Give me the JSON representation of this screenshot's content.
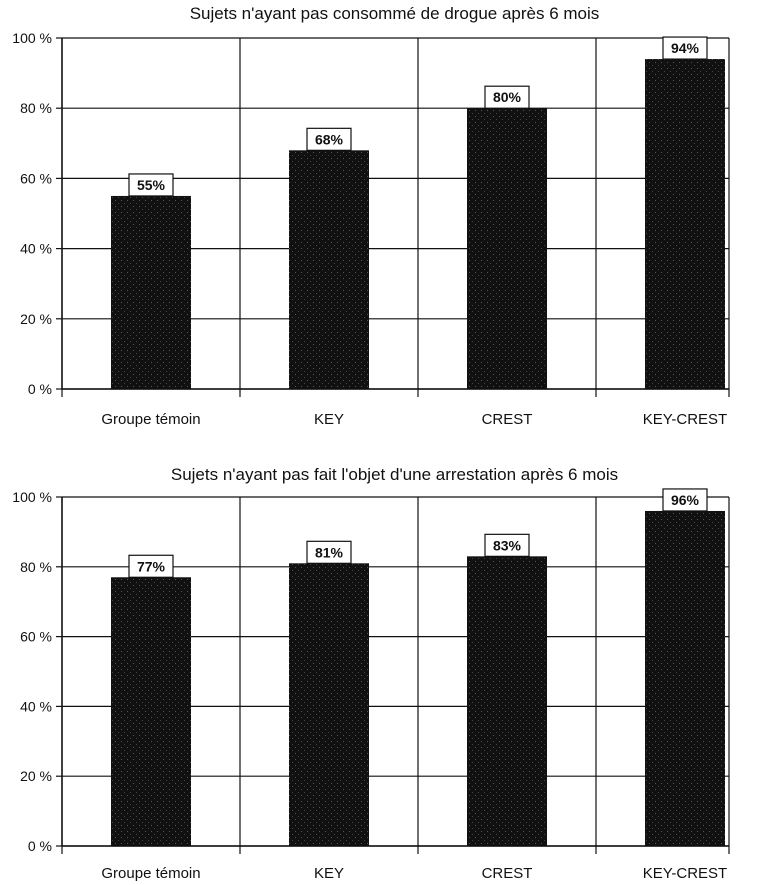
{
  "chart_data": [
    {
      "type": "bar",
      "title": "Sujets n'ayant pas consommé de drogue après 6 mois",
      "categories": [
        "Groupe témoin",
        "KEY",
        "CREST",
        "KEY-CREST"
      ],
      "values": [
        55,
        68,
        80,
        94
      ],
      "value_labels": [
        "55%",
        "68%",
        "80%",
        "94%"
      ],
      "yticks": [
        0,
        20,
        40,
        60,
        80,
        100
      ],
      "ytick_labels": [
        "0 %",
        "20 %",
        "40 %",
        "60 %",
        "80 %",
        "100 %"
      ],
      "ylim": [
        0,
        100
      ],
      "grid": "vertical and horizontal",
      "bar_color": "#111111"
    },
    {
      "type": "bar",
      "title": "Sujets n'ayant pas fait l'objet d'une arrestation après 6 mois",
      "categories": [
        "Groupe témoin",
        "KEY",
        "CREST",
        "KEY-CREST"
      ],
      "values": [
        77,
        81,
        83,
        96
      ],
      "value_labels": [
        "77%",
        "81%",
        "83%",
        "96%"
      ],
      "yticks": [
        0,
        20,
        40,
        60,
        80,
        100
      ],
      "ytick_labels": [
        "0 %",
        "20 %",
        "40 %",
        "60 %",
        "80 %",
        "100 %"
      ],
      "ylim": [
        0,
        100
      ],
      "grid": "vertical and horizontal",
      "bar_color": "#111111"
    }
  ]
}
